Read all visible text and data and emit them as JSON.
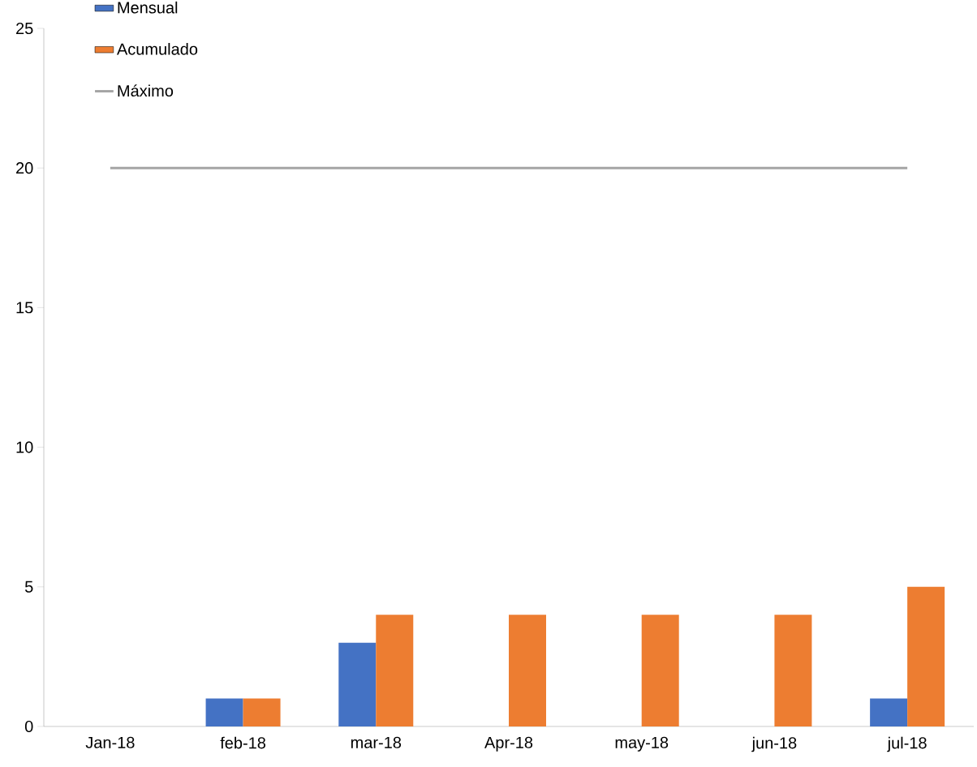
{
  "chart_data": {
    "type": "bar",
    "categories": [
      "Jan-18",
      "feb-18",
      "mar-18",
      "Apr-18",
      "may-18",
      "jun-18",
      "jul-18"
    ],
    "series": [
      {
        "name": "Mensual",
        "color": "#4472c4",
        "values": [
          0,
          1,
          3,
          0,
          0,
          0,
          1
        ]
      },
      {
        "name": "Acumulado",
        "color": "#ed7d31",
        "values": [
          0,
          1,
          4,
          4,
          4,
          4,
          5
        ]
      },
      {
        "name": "Máximo",
        "type": "line",
        "color": "#a5a5a5",
        "values": [
          20,
          20,
          20,
          20,
          20,
          20,
          20
        ]
      }
    ],
    "ylim": [
      0,
      25
    ],
    "yticks": [
      0,
      5,
      10,
      15,
      20,
      25
    ],
    "legend": "top left"
  }
}
